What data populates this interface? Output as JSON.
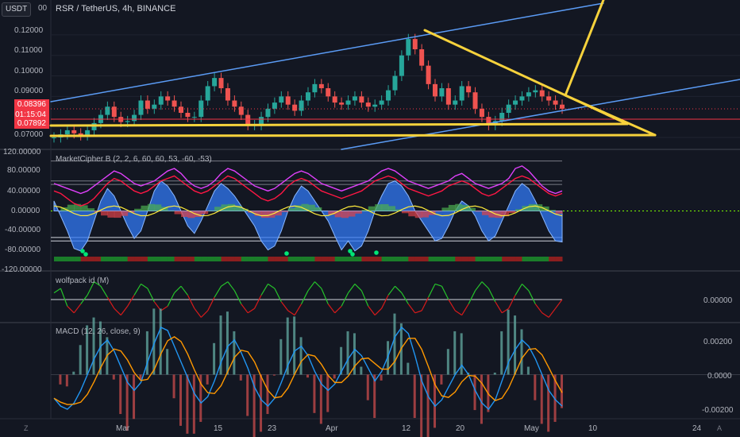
{
  "header": {
    "symbol_box": "USDT",
    "symbol_box_suffix": "00",
    "title": "RSR / TetherUS, 4h, BINANCE"
  },
  "price_axis": {
    "ticks": [
      "0.12000",
      "0.11000",
      "0.10000",
      "0.09000",
      "0.07000"
    ],
    "current_price": "0.08396",
    "countdown": "01:15:04",
    "support_level": "0.07892",
    "colors": {
      "current": "#f23645",
      "support": "#f23645"
    }
  },
  "panes": {
    "marketcipher": {
      "label": "MarketCipher B (2, 2, 6, 60, 60, 53, -60, -53)",
      "ticks": [
        "120.00000",
        "80.00000",
        "40.00000",
        "0.00000",
        "-40.00000",
        "-80.00000",
        "-120.00000"
      ]
    },
    "wolfpack": {
      "label": "wolfpack id (M)",
      "ticks": [
        "0.00000"
      ]
    },
    "macd": {
      "label": "MACD (12, 26, close, 9)",
      "ticks": [
        "0.00200",
        "0.0000",
        "-0.00200"
      ]
    }
  },
  "time_axis": {
    "ticks": [
      "Mar",
      "15",
      "23",
      "Apr",
      "12",
      "20",
      "May",
      "10",
      "24"
    ]
  },
  "corner": {
    "left": "Z",
    "right": "A"
  },
  "chart_data": [
    {
      "type": "line",
      "pane": "price",
      "title": "RSR / TetherUS, 4h, BINANCE",
      "ylim": [
        0.0665,
        0.1285
      ],
      "x_ticks": [
        "Mar",
        "15",
        "23",
        "Apr",
        "12",
        "20",
        "May",
        "10",
        "24"
      ],
      "series": [
        {
          "name": "",
          "values": [
            0.07,
            0.0715,
            0.0735,
            0.072,
            0.071,
            0.0735,
            0.077,
            0.081,
            0.085,
            0.08,
            0.0775,
            0.078,
            0.081,
            0.088,
            0.084,
            0.086,
            0.09,
            0.088,
            0.085,
            0.082,
            0.08,
            0.08,
            0.088,
            0.095,
            0.099,
            0.094,
            0.088,
            0.085,
            0.081,
            0.076,
            0.076,
            0.08,
            0.084,
            0.087,
            0.09,
            0.086,
            0.083,
            0.088,
            0.092,
            0.096,
            0.094,
            0.09,
            0.087,
            0.086,
            0.088,
            0.09,
            0.087,
            0.085,
            0.086,
            0.088,
            0.093,
            0.1,
            0.11,
            0.118,
            0.113,
            0.105,
            0.096,
            0.09,
            0.094,
            0.086,
            0.088,
            0.095,
            0.092,
            0.084,
            0.08,
            0.076,
            0.078,
            0.082,
            0.086,
            0.088,
            0.09,
            0.092,
            0.093,
            0.09,
            0.088,
            0.086,
            0.084
          ]
        }
      ]
    },
    {
      "type": "area",
      "pane": "marketcipher",
      "ylim": [
        -120,
        120
      ],
      "series": [
        {
          "name": "",
          "values": [
            20,
            -10,
            -40,
            -75,
            -80,
            -60,
            -20,
            20,
            45,
            30,
            0,
            -30,
            -55,
            -40,
            0,
            40,
            60,
            50,
            30,
            0,
            -30,
            -45,
            -20,
            10,
            40,
            55,
            45,
            30,
            10,
            -10,
            -30,
            -60,
            -78,
            -70,
            -40,
            0,
            30,
            50,
            40,
            20,
            0,
            -20,
            -50,
            -78,
            -60,
            -80,
            -70,
            -40,
            0,
            30,
            55,
            60,
            50,
            30,
            0,
            -20,
            -40,
            -60,
            -55,
            -30,
            0,
            20,
            10,
            -10,
            -40,
            -60,
            -50,
            -20,
            10,
            40,
            55,
            45,
            20,
            -10,
            -40,
            -60,
            -62
          ]
        },
        {
          "name": "",
          "values": [
            55,
            50,
            45,
            40,
            35,
            40,
            50,
            60,
            70,
            80,
            75,
            65,
            55,
            50,
            55,
            60,
            70,
            80,
            85,
            75,
            60,
            50,
            45,
            50,
            60,
            75,
            85,
            80,
            70,
            60,
            50,
            45,
            40,
            45,
            55,
            65,
            75,
            80,
            75,
            65,
            55,
            50,
            45,
            40,
            45,
            50,
            55,
            60,
            70,
            80,
            85,
            80,
            70,
            60,
            55,
            50,
            45,
            50,
            55,
            60,
            70,
            75,
            65,
            55,
            50,
            45,
            50,
            55,
            65,
            85,
            90,
            80,
            65,
            50,
            40,
            35,
            40
          ]
        },
        {
          "name": "",
          "values": [
            40,
            35,
            25,
            15,
            10,
            15,
            25,
            40,
            55,
            65,
            60,
            50,
            40,
            35,
            40,
            50,
            60,
            65,
            70,
            60,
            50,
            40,
            35,
            40,
            50,
            60,
            70,
            65,
            55,
            45,
            35,
            25,
            20,
            25,
            35,
            50,
            60,
            65,
            60,
            50,
            40,
            35,
            30,
            25,
            30,
            35,
            40,
            50,
            60,
            65,
            70,
            65,
            55,
            45,
            40,
            35,
            30,
            35,
            40,
            50,
            55,
            60,
            55,
            45,
            35,
            30,
            35,
            45,
            55,
            65,
            70,
            65,
            55,
            45,
            35,
            30,
            35
          ]
        }
      ]
    },
    {
      "type": "line",
      "pane": "wolfpack",
      "series": [
        {
          "name": "",
          "values": [
            0.3,
            0.5,
            -0.3,
            -0.6,
            -0.2,
            0.2,
            0.8,
            0.6,
            0.1,
            -0.4,
            -0.7,
            -0.3,
            0.2,
            0.7,
            0.5,
            -0.1,
            -0.5,
            -0.3,
            0.3,
            0.6,
            0.2,
            -0.4,
            -0.8,
            -0.5,
            0.1,
            0.6,
            0.8,
            0.4,
            -0.2,
            -0.6,
            -0.4,
            0.2,
            0.7,
            0.5,
            -0.1,
            -0.5,
            -0.7,
            -0.2,
            0.4,
            0.8,
            0.5,
            -0.2,
            -0.6,
            -0.3,
            0.3,
            0.7,
            0.4,
            -0.3,
            -0.7,
            -0.4,
            0.2,
            0.6,
            0.3,
            -0.2,
            -0.6,
            -0.5,
            0.1,
            0.7,
            0.6,
            0.0,
            -0.5,
            -0.7,
            -0.2,
            0.4,
            0.8,
            0.5,
            -0.1,
            -0.6,
            -0.4,
            0.2,
            0.7,
            0.4,
            -0.2,
            -0.6,
            -0.8,
            -0.4,
            0.0
          ]
        }
      ]
    },
    {
      "type": "line",
      "pane": "macd",
      "ylim": [
        -0.0028,
        0.0032
      ],
      "series": [
        {
          "name": "",
          "values": [
            -0.0015,
            -0.002,
            -0.0022,
            -0.0018,
            -0.001,
            0.0,
            0.001,
            0.0018,
            0.0022,
            0.0015,
            0.0005,
            -0.0005,
            -0.001,
            -0.0005,
            0.0008,
            0.002,
            0.003,
            0.0028,
            0.0018,
            0.0008,
            -0.0002,
            -0.0012,
            -0.0018,
            -0.0014,
            -0.0004,
            0.0008,
            0.0018,
            0.0022,
            0.0014,
            0.0004,
            -0.0008,
            -0.0016,
            -0.002,
            -0.0015,
            -0.0005,
            0.0006,
            0.0015,
            0.0018,
            0.0012,
            0.0002,
            -0.0006,
            -0.001,
            -0.0006,
            0.0002,
            0.001,
            0.0016,
            0.0012,
            0.0004,
            -0.0004,
            0.0002,
            0.0012,
            0.0024,
            0.003,
            0.0026,
            0.0012,
            -0.0004,
            -0.0014,
            -0.002,
            -0.0016,
            -0.0008,
            0.0,
            0.0006,
            0.0,
            -0.001,
            -0.0018,
            -0.0022,
            -0.0016,
            -0.0004,
            0.0008,
            0.0016,
            0.0022,
            0.0018,
            0.001,
            0.0,
            -0.001,
            -0.0016,
            -0.002
          ]
        }
      ]
    }
  ]
}
